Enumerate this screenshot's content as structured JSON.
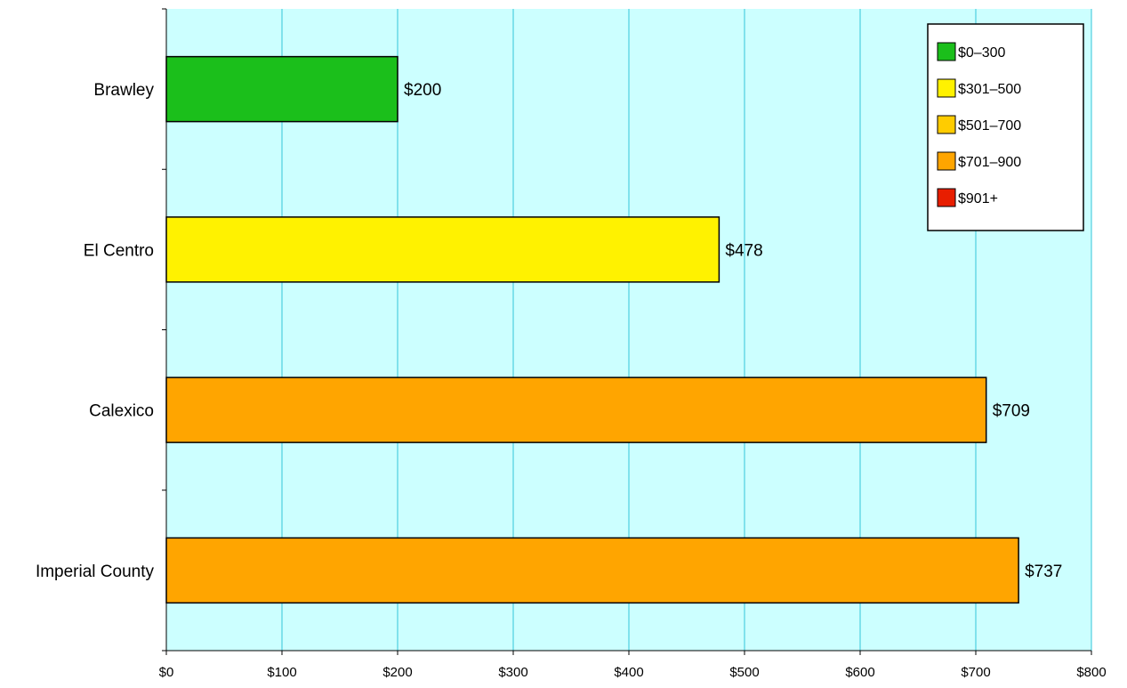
{
  "chart_data": {
    "type": "bar",
    "orientation": "horizontal",
    "categories": [
      "Brawley",
      "El Centro",
      "Calexico",
      "Imperial County"
    ],
    "values": [
      200,
      478,
      709,
      737
    ],
    "data_labels": [
      "$200",
      "$478",
      "$709",
      "$737"
    ],
    "bar_bins": [
      0,
      1,
      3,
      3
    ],
    "xlim": [
      0,
      800
    ],
    "x_ticks": [
      0,
      100,
      200,
      300,
      400,
      500,
      600,
      700,
      800
    ],
    "x_tick_labels": [
      "$0",
      "$100",
      "$200",
      "$300",
      "$400",
      "$500",
      "$600",
      "$700",
      "$800"
    ],
    "grid": "vertical",
    "legend_position": "top-right",
    "legend": [
      {
        "label": "$0–300",
        "color": "#1bbf1b"
      },
      {
        "label": "$301–500",
        "color": "#fff200"
      },
      {
        "label": "$501–700",
        "color": "#ffcc00"
      },
      {
        "label": "$701–900",
        "color": "#ffa500"
      },
      {
        "label": "$901+",
        "color": "#e81e00"
      }
    ],
    "colors": {
      "plot_background": "#ccffff",
      "gridline": "#33c6d9",
      "bar_outline": "#000000"
    },
    "title": "",
    "xlabel": "",
    "ylabel": ""
  }
}
